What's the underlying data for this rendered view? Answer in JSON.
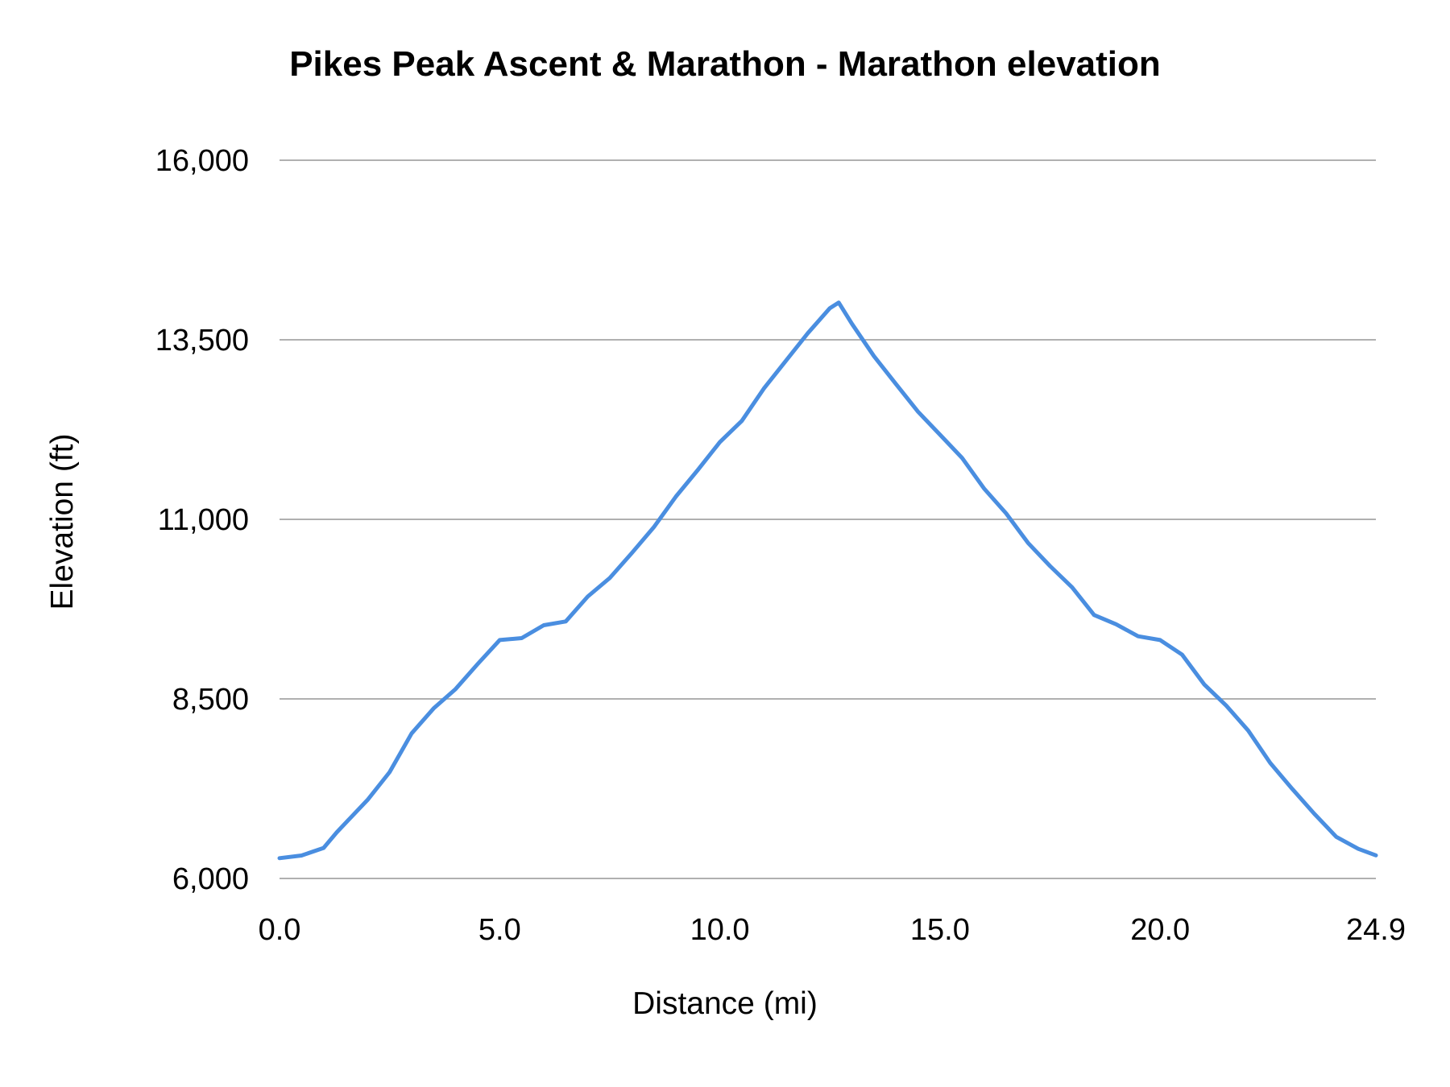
{
  "chart_data": {
    "type": "line",
    "title": "Pikes Peak Ascent & Marathon - Marathon elevation",
    "xlabel": "Distance (mi)",
    "ylabel": "Elevation (ft)",
    "xlim": [
      0,
      24.9
    ],
    "ylim": [
      6000,
      16000
    ],
    "x_ticks": [
      0,
      5,
      10,
      15,
      20,
      24.9
    ],
    "x_tick_labels": [
      "0.0",
      "5.0",
      "10.0",
      "15.0",
      "20.0",
      "24.9"
    ],
    "y_ticks": [
      6000,
      8500,
      11000,
      13500,
      16000
    ],
    "y_tick_labels": [
      "6,000",
      "8,500",
      "11,000",
      "13,500",
      "16,000"
    ],
    "grid": "horizontal",
    "legend": "none",
    "color": "#4a8ee0",
    "series": [
      {
        "x": [
          0,
          0.5,
          1.0,
          1.3,
          1.6,
          2.0,
          2.5,
          3.0,
          3.5,
          4.0,
          4.5,
          5.0,
          5.5,
          6.0,
          6.5,
          7.0,
          7.5,
          8.0,
          8.5,
          9.0,
          9.5,
          10.0,
          10.5,
          11.0,
          11.5,
          12.0,
          12.5,
          12.7,
          13.0,
          13.5,
          14.0,
          14.5,
          15.0,
          15.5,
          16.0,
          16.5,
          17.0,
          17.5,
          18.0,
          18.5,
          19.0,
          19.5,
          20.0,
          20.5,
          21.0,
          21.5,
          22.0,
          22.5,
          23.0,
          23.5,
          24.0,
          24.5,
          24.9
        ],
        "y": [
          6283,
          6320,
          6425,
          6644,
          6837,
          7094,
          7480,
          8020,
          8368,
          8638,
          8986,
          9320,
          9346,
          9526,
          9578,
          9925,
          10183,
          10530,
          10890,
          11315,
          11688,
          12075,
          12371,
          12821,
          13207,
          13593,
          13941,
          14018,
          13722,
          13272,
          12885,
          12499,
          12178,
          11856,
          11431,
          11084,
          10672,
          10350,
          10054,
          9668,
          9539,
          9372,
          9320,
          9115,
          8703,
          8407,
          8059,
          7609,
          7248,
          6901,
          6580,
          6412,
          6322
        ]
      }
    ]
  }
}
